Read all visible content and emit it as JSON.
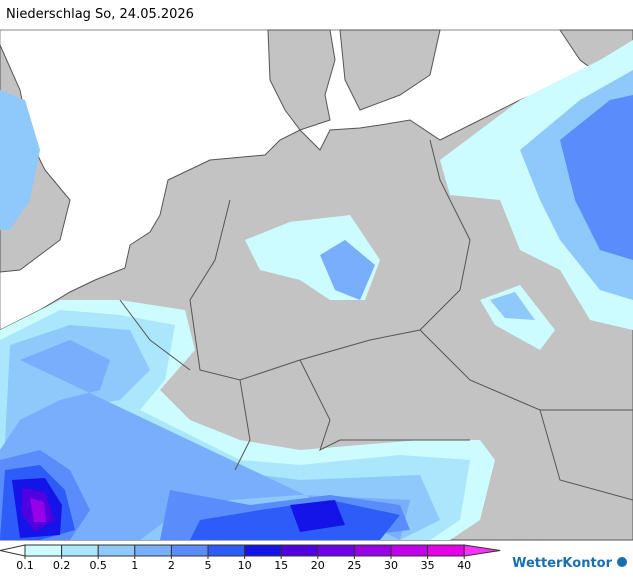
{
  "title": "Niederschlag So, 24.05.2026",
  "legend": {
    "labels": [
      "0.1",
      "0.2",
      "0.5",
      "1",
      "2",
      "5",
      "10",
      "15",
      "20",
      "25",
      "30",
      "35",
      "40"
    ],
    "colors": [
      "#ffffff",
      "#ccfcff",
      "#aae6fc",
      "#8fc8fb",
      "#78aefb",
      "#5a8cfb",
      "#2d5cf8",
      "#1414e8",
      "#5000e0",
      "#7000e8",
      "#9800e8",
      "#c000e8",
      "#e600e6",
      "#ff30ff"
    ]
  },
  "brand": "WetterKontor"
}
